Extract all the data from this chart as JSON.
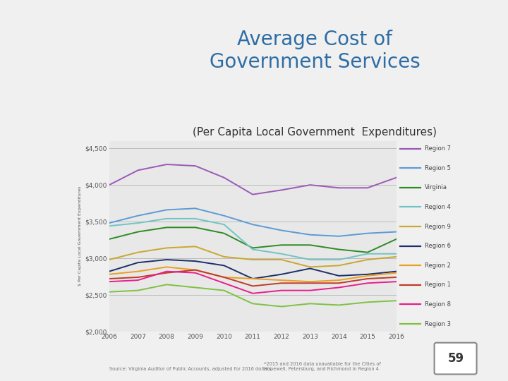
{
  "title1": "Average Cost of",
  "title2": "Government Services",
  "subtitle": "(Per Capita Local Government  Expenditures)",
  "years": [
    2006,
    2007,
    2008,
    2009,
    2010,
    2011,
    2012,
    2013,
    2014,
    2015,
    2016
  ],
  "series": {
    "Region 7": {
      "color": "#9B59B6",
      "values": [
        4000,
        4200,
        4280,
        4260,
        4100,
        3870,
        3930,
        4000,
        3960,
        3960,
        4100
      ]
    },
    "Region 5": {
      "color": "#5B9BD5",
      "values": [
        3480,
        3580,
        3660,
        3680,
        3580,
        3460,
        3380,
        3320,
        3300,
        3340,
        3360
      ]
    },
    "Virginia": {
      "color": "#2E8B22",
      "values": [
        3260,
        3360,
        3420,
        3420,
        3340,
        3140,
        3180,
        3180,
        3120,
        3080,
        3260
      ]
    },
    "Region 4": {
      "color": "#70C4C4",
      "values": [
        3440,
        3480,
        3540,
        3540,
        3460,
        3120,
        3060,
        2980,
        2980,
        3060,
        3060
      ]
    },
    "Region 9": {
      "color": "#C8A830",
      "values": [
        2980,
        3080,
        3140,
        3160,
        3020,
        2980,
        2980,
        2880,
        2900,
        2980,
        3020
      ]
    },
    "Region 6": {
      "color": "#1C2F6A",
      "values": [
        2820,
        2940,
        2980,
        2960,
        2900,
        2720,
        2780,
        2860,
        2760,
        2780,
        2820
      ]
    },
    "Region 2": {
      "color": "#E8A020",
      "values": [
        2780,
        2820,
        2880,
        2840,
        2740,
        2720,
        2700,
        2680,
        2700,
        2760,
        2800
      ]
    },
    "Region 1": {
      "color": "#C0392B",
      "values": [
        2720,
        2740,
        2800,
        2840,
        2740,
        2620,
        2660,
        2660,
        2660,
        2720,
        2740
      ]
    },
    "Region 8": {
      "color": "#E91E8C",
      "values": [
        2680,
        2700,
        2820,
        2800,
        2660,
        2520,
        2560,
        2560,
        2600,
        2660,
        2680
      ]
    },
    "Region 3": {
      "color": "#7DC241",
      "values": [
        2540,
        2560,
        2640,
        2600,
        2560,
        2380,
        2340,
        2380,
        2360,
        2400,
        2420
      ]
    }
  },
  "ylim": [
    2000,
    4600
  ],
  "yticks": [
    2000,
    2500,
    3000,
    3500,
    4000,
    4500
  ],
  "xlim_min": 2006,
  "xlim_max": 2016,
  "bg_color": "#E8E8E8",
  "page_bg": "#F0F0F0",
  "title_color": "#2E6DA4",
  "subtitle_color": "#333333",
  "footer_source": "Source: Virginia Auditor of Public Accounts, adjusted for 2016 dollars",
  "footer_note": "*2015 and 2016 data unavailable for the Cities of\nHopewell, Petersburg, and Richmond in Region 4",
  "page_number": "59",
  "green_bar_color": "#3A9E3A",
  "ylabel": "$ Per Capita Local Government Expenditures"
}
